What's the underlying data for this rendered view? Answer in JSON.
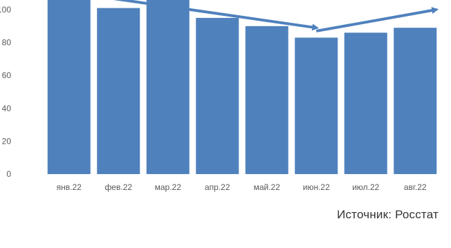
{
  "chart_data": {
    "type": "bar",
    "title": "",
    "xlabel": "",
    "ylabel": "",
    "categories": [
      "янв.22",
      "фев.22",
      "мар.22",
      "апр.22",
      "май.22",
      "июн.22",
      "июл.22",
      "авг.22"
    ],
    "values": [
      110,
      101,
      108,
      95,
      90,
      83,
      86,
      89
    ],
    "ylim": [
      0,
      110
    ],
    "y_ticks": [
      "0",
      "20",
      "40",
      "60",
      "80",
      "100"
    ],
    "grid": false,
    "legend": "none",
    "bar_color": "#4f81bd",
    "annotations": [
      {
        "type": "trend-arrow",
        "from_category": "янв.22",
        "to_category": "июн.22",
        "from_value": 110,
        "to_value": 89
      },
      {
        "type": "trend-arrow",
        "from_category": "июн.22",
        "to_category": "авг.22",
        "from_value": 87,
        "to_value": 100
      }
    ]
  },
  "footer": {
    "source": "Источник: Росстат"
  }
}
